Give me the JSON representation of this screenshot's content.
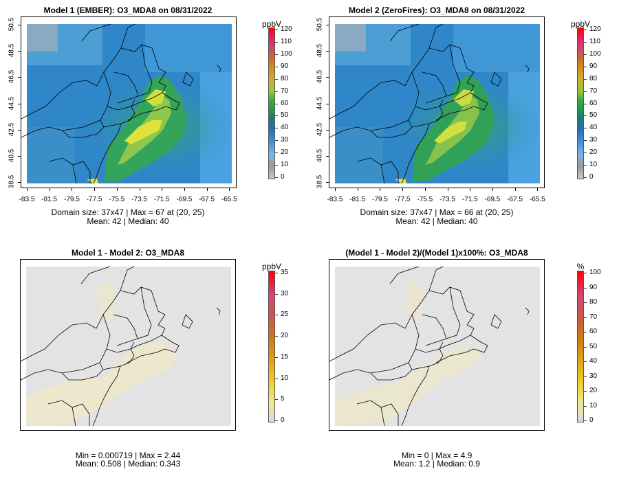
{
  "panels": [
    {
      "id": "p1",
      "title": "Model 1 (EMBER): O3_MDA8 on 08/31/2022",
      "stats_line1": "Domain size: 37x47 | Max = 67 at (20, 25)",
      "stats_line2": "Mean: 42 |  Median: 40",
      "unit": "ppbV",
      "colorbar_ticks": [
        "120",
        "110",
        "100",
        "90",
        "80",
        "70",
        "60",
        "50",
        "40",
        "30",
        "20",
        "10",
        "0"
      ],
      "palette": "ozone",
      "x_ticks": [
        "-83.5",
        "-81.5",
        "-79.5",
        "-77.5",
        "-75.5",
        "-73.5",
        "-71.5",
        "-69.5",
        "-67.5",
        "-65.5"
      ],
      "y_ticks": [
        "50.5",
        "48.5",
        "46.5",
        "44.5",
        "42.5",
        "40.5",
        "38.5"
      ]
    },
    {
      "id": "p2",
      "title": "Model 2 (ZeroFires): O3_MDA8 on 08/31/2022",
      "stats_line1": "Domain size: 37x47 | Max = 66 at (20, 25)",
      "stats_line2": "Mean: 42 |  Median: 40",
      "unit": "ppbV",
      "colorbar_ticks": [
        "120",
        "110",
        "100",
        "90",
        "80",
        "70",
        "60",
        "50",
        "40",
        "30",
        "20",
        "10",
        "0"
      ],
      "palette": "ozone",
      "x_ticks": [
        "-83.5",
        "-81.5",
        "-79.5",
        "-77.5",
        "-75.5",
        "-73.5",
        "-71.5",
        "-69.5",
        "-67.5",
        "-65.5"
      ],
      "y_ticks": [
        "50.5",
        "48.5",
        "46.5",
        "44.5",
        "42.5",
        "40.5",
        "38.5"
      ]
    },
    {
      "id": "p3",
      "title": "Model 1 - Model 2: O3_MDA8",
      "stats_line1": "Min = 0.000719 | Max = 2.44",
      "stats_line2": "Mean: 0.508 |  Median: 0.343",
      "unit": "ppbV",
      "colorbar_ticks": [
        "35",
        "30",
        "25",
        "20",
        "15",
        "10",
        "5",
        "0"
      ],
      "palette": "diff"
    },
    {
      "id": "p4",
      "title": "(Model 1 - Model 2)/(Model 1)x100%: O3_MDA8",
      "stats_line1": "Min = 0 | Max = 4.9",
      "stats_line2": "Mean: 1.2 |  Median: 0.9",
      "unit": "%",
      "colorbar_ticks": [
        "100",
        "90",
        "80",
        "70",
        "60",
        "50",
        "40",
        "30",
        "20",
        "10",
        "0"
      ],
      "palette": "diff"
    }
  ],
  "colors": {
    "ocean_blue": "#2f86c8",
    "land_blue": "#3f9fd8",
    "light_blue": "#5aaee6",
    "grey_nw": "#9bb0c0",
    "green": "#2aa55a",
    "yellow_green": "#a8d24a",
    "yellow": "#e2e23a",
    "diff_bg": "#e3e3e3",
    "diff_plume": "#ede8cf",
    "border": "#000000"
  }
}
